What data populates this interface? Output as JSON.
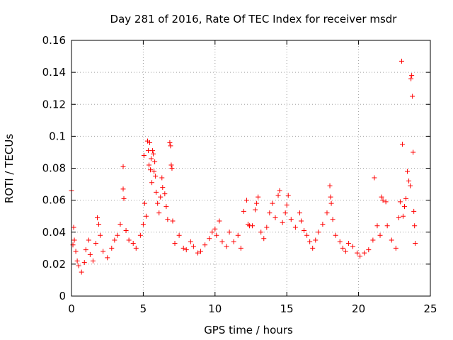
{
  "chart_data": {
    "type": "scatter",
    "title": "Day 281 of 2016, Rate Of TEC Index for receiver msdr",
    "xlabel": "GPS time / hours",
    "ylabel": "ROTI / TECUs",
    "xlim": [
      0,
      25
    ],
    "ylim": [
      0,
      0.16
    ],
    "xticks": [
      0,
      5,
      10,
      15,
      20,
      25
    ],
    "xtick_labels": [
      "0",
      "5",
      "10",
      "15",
      "20",
      "25"
    ],
    "yticks": [
      0,
      0.02,
      0.04,
      0.06,
      0.08,
      0.1,
      0.12,
      0.14,
      0.16
    ],
    "ytick_labels": [
      "0",
      "0.02",
      "0.04",
      "0.06",
      "0.08",
      "0.1",
      "0.12",
      "0.14",
      "0.16"
    ],
    "grid": true,
    "marker": "+",
    "color": "#ff0000",
    "series": [
      {
        "name": "ROTI",
        "points": [
          [
            0.0,
            0.066
          ],
          [
            0.1,
            0.032
          ],
          [
            0.15,
            0.043
          ],
          [
            0.2,
            0.035
          ],
          [
            0.3,
            0.028
          ],
          [
            0.4,
            0.022
          ],
          [
            0.5,
            0.019
          ],
          [
            0.7,
            0.015
          ],
          [
            0.9,
            0.021
          ],
          [
            1.0,
            0.029
          ],
          [
            1.2,
            0.035
          ],
          [
            1.3,
            0.026
          ],
          [
            1.5,
            0.022
          ],
          [
            1.7,
            0.033
          ],
          [
            1.8,
            0.049
          ],
          [
            1.9,
            0.045
          ],
          [
            2.0,
            0.038
          ],
          [
            2.2,
            0.028
          ],
          [
            2.5,
            0.024
          ],
          [
            2.8,
            0.03
          ],
          [
            3.0,
            0.035
          ],
          [
            3.2,
            0.038
          ],
          [
            3.4,
            0.045
          ],
          [
            3.6,
            0.081
          ],
          [
            3.6,
            0.067
          ],
          [
            3.65,
            0.061
          ],
          [
            3.8,
            0.041
          ],
          [
            4.0,
            0.035
          ],
          [
            4.3,
            0.033
          ],
          [
            4.5,
            0.03
          ],
          [
            4.8,
            0.038
          ],
          [
            5.0,
            0.045
          ],
          [
            5.05,
            0.088
          ],
          [
            5.1,
            0.058
          ],
          [
            5.2,
            0.05
          ],
          [
            5.3,
            0.097
          ],
          [
            5.35,
            0.091
          ],
          [
            5.4,
            0.082
          ],
          [
            5.45,
            0.096
          ],
          [
            5.5,
            0.079
          ],
          [
            5.55,
            0.086
          ],
          [
            5.6,
            0.071
          ],
          [
            5.65,
            0.091
          ],
          [
            5.7,
            0.089
          ],
          [
            5.75,
            0.078
          ],
          [
            5.8,
            0.084
          ],
          [
            5.85,
            0.075
          ],
          [
            5.9,
            0.065
          ],
          [
            6.0,
            0.058
          ],
          [
            6.1,
            0.052
          ],
          [
            6.2,
            0.062
          ],
          [
            6.3,
            0.074
          ],
          [
            6.35,
            0.068
          ],
          [
            6.5,
            0.064
          ],
          [
            6.6,
            0.056
          ],
          [
            6.7,
            0.048
          ],
          [
            6.85,
            0.096
          ],
          [
            6.9,
            0.094
          ],
          [
            6.95,
            0.082
          ],
          [
            7.0,
            0.08
          ],
          [
            7.05,
            0.047
          ],
          [
            7.2,
            0.033
          ],
          [
            7.5,
            0.038
          ],
          [
            7.8,
            0.03
          ],
          [
            8.0,
            0.029
          ],
          [
            8.3,
            0.034
          ],
          [
            8.5,
            0.031
          ],
          [
            8.8,
            0.027
          ],
          [
            9.0,
            0.028
          ],
          [
            9.3,
            0.032
          ],
          [
            9.6,
            0.036
          ],
          [
            9.8,
            0.04
          ],
          [
            10.0,
            0.042
          ],
          [
            10.1,
            0.038
          ],
          [
            10.3,
            0.047
          ],
          [
            10.5,
            0.034
          ],
          [
            10.8,
            0.031
          ],
          [
            11.0,
            0.04
          ],
          [
            11.3,
            0.034
          ],
          [
            11.6,
            0.038
          ],
          [
            11.8,
            0.03
          ],
          [
            12.0,
            0.053
          ],
          [
            12.2,
            0.06
          ],
          [
            12.3,
            0.045
          ],
          [
            12.4,
            0.044
          ],
          [
            12.6,
            0.044
          ],
          [
            12.8,
            0.054
          ],
          [
            12.9,
            0.058
          ],
          [
            13.0,
            0.062
          ],
          [
            13.2,
            0.04
          ],
          [
            13.4,
            0.036
          ],
          [
            13.6,
            0.043
          ],
          [
            13.8,
            0.052
          ],
          [
            14.0,
            0.058
          ],
          [
            14.2,
            0.049
          ],
          [
            14.4,
            0.063
          ],
          [
            14.5,
            0.066
          ],
          [
            14.7,
            0.046
          ],
          [
            14.9,
            0.052
          ],
          [
            15.0,
            0.057
          ],
          [
            15.1,
            0.063
          ],
          [
            15.3,
            0.048
          ],
          [
            15.6,
            0.043
          ],
          [
            15.9,
            0.052
          ],
          [
            16.0,
            0.047
          ],
          [
            16.2,
            0.041
          ],
          [
            16.4,
            0.038
          ],
          [
            16.6,
            0.034
          ],
          [
            16.8,
            0.03
          ],
          [
            17.0,
            0.035
          ],
          [
            17.2,
            0.04
          ],
          [
            17.5,
            0.045
          ],
          [
            17.8,
            0.052
          ],
          [
            18.0,
            0.069
          ],
          [
            18.05,
            0.062
          ],
          [
            18.1,
            0.058
          ],
          [
            18.2,
            0.048
          ],
          [
            18.4,
            0.038
          ],
          [
            18.7,
            0.034
          ],
          [
            18.9,
            0.03
          ],
          [
            19.1,
            0.028
          ],
          [
            19.3,
            0.033
          ],
          [
            19.6,
            0.031
          ],
          [
            19.9,
            0.027
          ],
          [
            20.1,
            0.025
          ],
          [
            20.4,
            0.027
          ],
          [
            20.7,
            0.029
          ],
          [
            21.0,
            0.035
          ],
          [
            21.1,
            0.074
          ],
          [
            21.3,
            0.044
          ],
          [
            21.5,
            0.038
          ],
          [
            21.6,
            0.062
          ],
          [
            21.7,
            0.06
          ],
          [
            21.9,
            0.059
          ],
          [
            22.0,
            0.044
          ],
          [
            22.3,
            0.035
          ],
          [
            22.6,
            0.03
          ],
          [
            22.8,
            0.049
          ],
          [
            22.9,
            0.059
          ],
          [
            23.0,
            0.147
          ],
          [
            23.05,
            0.095
          ],
          [
            23.1,
            0.05
          ],
          [
            23.2,
            0.056
          ],
          [
            23.3,
            0.061
          ],
          [
            23.4,
            0.078
          ],
          [
            23.5,
            0.072
          ],
          [
            23.6,
            0.069
          ],
          [
            23.65,
            0.136
          ],
          [
            23.7,
            0.138
          ],
          [
            23.75,
            0.125
          ],
          [
            23.8,
            0.09
          ],
          [
            23.85,
            0.053
          ],
          [
            23.9,
            0.044
          ],
          [
            23.95,
            0.033
          ]
        ]
      }
    ]
  }
}
